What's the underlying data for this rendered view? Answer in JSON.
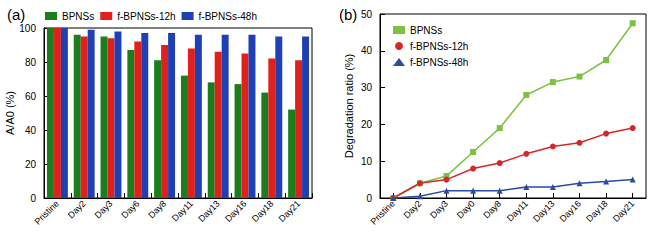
{
  "chart_data": [
    {
      "type": "bar",
      "title": "(a)",
      "categories": [
        "Pristine",
        "Day2",
        "Day3",
        "Day6",
        "Day8",
        "Day11",
        "Day13",
        "Day16",
        "Day18",
        "Day21"
      ],
      "series": [
        {
          "name": "BPNSs",
          "color": "#1b7d1b",
          "values": [
            100,
            96,
            95,
            87,
            81,
            72,
            68,
            67,
            62,
            52
          ]
        },
        {
          "name": "f-BPNSs-12h",
          "color": "#e0201b",
          "values": [
            100,
            95,
            94,
            92,
            90,
            88,
            86,
            85,
            82,
            81
          ]
        },
        {
          "name": "f-BPNSs-48h",
          "color": "#1f3fb5",
          "values": [
            100,
            99,
            98,
            97,
            97,
            96,
            96,
            96,
            95,
            95
          ]
        }
      ],
      "ylabel": "A/A0 (%)",
      "ylim": [
        0,
        100
      ],
      "yticks": [
        0,
        20,
        40,
        60,
        80,
        100
      ],
      "legend": "top"
    },
    {
      "type": "line",
      "title": "(b)",
      "categories": [
        "Pristine",
        "Day2",
        "Day3",
        "Day0",
        "Day8",
        "Day11",
        "Day13",
        "Day16",
        "Day18",
        "Day21"
      ],
      "series": [
        {
          "name": "BPNSs",
          "color": "#7cc242",
          "marker": "square",
          "values": [
            0,
            4,
            6,
            12.5,
            19,
            28,
            31.5,
            33,
            37.5,
            47.5
          ]
        },
        {
          "name": "f-BPNSs-12h",
          "color": "#d62728",
          "marker": "circle",
          "values": [
            0,
            4,
            5,
            8,
            9.5,
            12,
            14,
            15,
            17.5,
            19
          ]
        },
        {
          "name": "f-BPNSs-48h",
          "color": "#2a4ba0",
          "marker": "triangle",
          "values": [
            0,
            0.5,
            2,
            2,
            2,
            3,
            3,
            4,
            4.5,
            5
          ]
        }
      ],
      "ylabel": "Degradation ratio (%)",
      "ylim": [
        0,
        50
      ],
      "yticks": [
        0,
        10,
        20,
        30,
        40,
        50
      ],
      "legend": "upper left"
    }
  ]
}
